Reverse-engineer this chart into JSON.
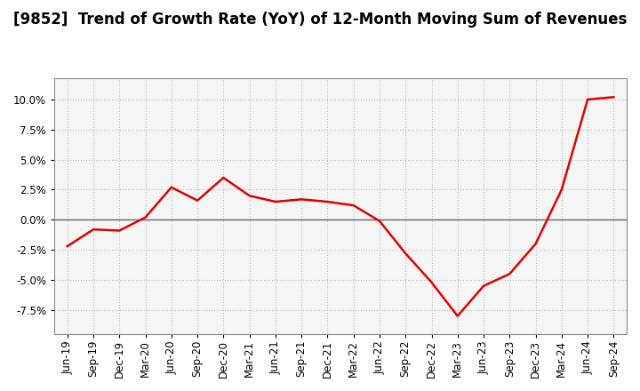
{
  "title": "[9852]  Trend of Growth Rate (YoY) of 12-Month Moving Sum of Revenues",
  "x_labels": [
    "Jun-19",
    "Sep-19",
    "Dec-19",
    "Mar-20",
    "Jun-20",
    "Sep-20",
    "Dec-20",
    "Mar-21",
    "Jun-21",
    "Sep-21",
    "Dec-21",
    "Mar-22",
    "Jun-22",
    "Sep-22",
    "Dec-22",
    "Mar-23",
    "Jun-23",
    "Sep-23",
    "Dec-23",
    "Mar-24",
    "Jun-24",
    "Sep-24"
  ],
  "y_values": [
    -2.2,
    -0.8,
    -0.9,
    0.2,
    2.7,
    1.6,
    3.5,
    2.0,
    1.5,
    1.7,
    1.5,
    1.2,
    -0.1,
    -2.8,
    -5.2,
    -8.0,
    -5.5,
    -4.5,
    -2.0,
    2.5,
    10.0,
    10.2
  ],
  "line_color": "#dd0000",
  "background_color": "#ffffff",
  "plot_bg_color": "#f5f5f5",
  "grid_color": "#bbbbbb",
  "zero_line_color": "#666666",
  "y_ticks": [
    -7.5,
    -5.0,
    -2.5,
    0.0,
    2.5,
    5.0,
    7.5,
    10.0
  ],
  "ylim": [
    -9.5,
    11.8
  ],
  "title_fontsize": 12,
  "tick_fontsize": 8.5,
  "line_width": 1.8
}
